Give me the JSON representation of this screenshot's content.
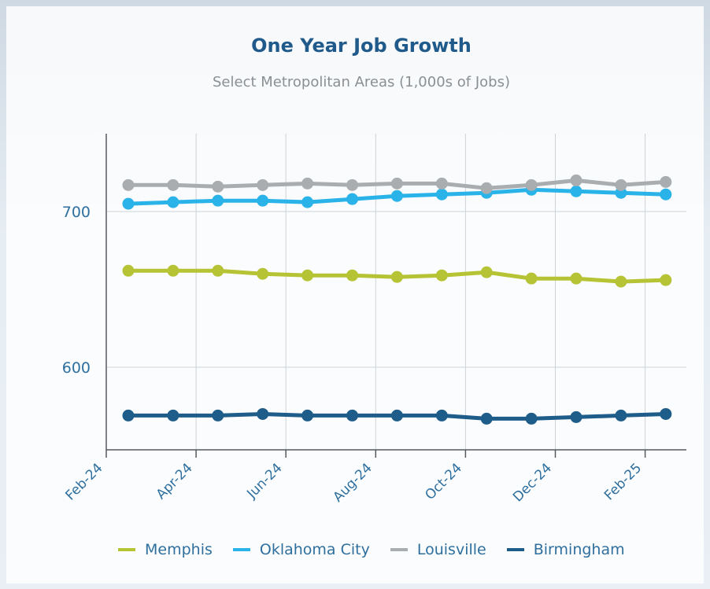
{
  "colors": {
    "memphis": "#b5c334",
    "oklahoma_city": "#2ab3e8",
    "louisville": "#a9adb0",
    "birmingham": "#1e5c8a",
    "title": "#1f5a8a",
    "axis_text": "#2e6f9e"
  },
  "chart_data": {
    "type": "line",
    "title": "One Year Job Growth",
    "subtitle": "Select Metropolitan Areas (1,000s of Jobs)",
    "xlabel": "",
    "ylabel": "",
    "ylim": [
      547,
      750
    ],
    "yticks": [
      600,
      700
    ],
    "x_tick_labels": [
      "Feb-24",
      "Apr-24",
      "Jun-24",
      "Aug-24",
      "Oct-24",
      "Dec-24",
      "Feb-25"
    ],
    "x": [
      "Mar-24",
      "Apr-24",
      "May-24",
      "Jun-24",
      "Jul-24",
      "Aug-24",
      "Sep-24",
      "Oct-24",
      "Nov-24",
      "Dec-24",
      "Jan-25",
      "Feb-25",
      "Mar-25"
    ],
    "grid": true,
    "legend_position": "bottom",
    "series": [
      {
        "name": "Memphis",
        "color_key": "memphis",
        "values": [
          662,
          662,
          662,
          660,
          659,
          659,
          658,
          659,
          661,
          657,
          657,
          655,
          656
        ]
      },
      {
        "name": "Oklahoma City",
        "color_key": "oklahoma_city",
        "values": [
          705,
          706,
          707,
          707,
          706,
          708,
          710,
          711,
          712,
          714,
          713,
          712,
          711
        ]
      },
      {
        "name": "Louisville",
        "color_key": "louisville",
        "values": [
          717,
          717,
          716,
          717,
          718,
          717,
          718,
          718,
          715,
          717,
          720,
          717,
          719
        ]
      },
      {
        "name": "Birmingham",
        "color_key": "birmingham",
        "values": [
          569,
          569,
          569,
          570,
          569,
          569,
          569,
          569,
          567,
          567,
          568,
          569,
          570
        ]
      }
    ]
  }
}
